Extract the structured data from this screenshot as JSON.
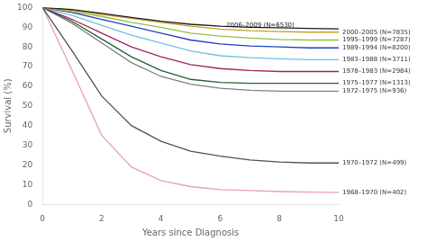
{
  "chart_data": {
    "type": "line",
    "xlabel": "Years since Diagnosis",
    "ylabel": "Survival (%)",
    "x": [
      0,
      1,
      2,
      3,
      4,
      5,
      6,
      7,
      8,
      9,
      10
    ],
    "xlim": [
      0,
      10
    ],
    "ylim": [
      0,
      100
    ],
    "xticks": [
      0,
      2,
      4,
      6,
      8,
      10
    ],
    "yticks": [
      0,
      10,
      20,
      30,
      40,
      50,
      60,
      70,
      80,
      90,
      100
    ],
    "grid": false,
    "series": [
      {
        "name": "2006–2009 (N=6530)",
        "color": "#1a1a1a",
        "values": [
          100,
          99,
          97,
          95,
          93,
          91.5,
          90.5,
          90.0,
          89.7,
          89.4,
          89.2
        ]
      },
      {
        "name": "2000–2005 (N=7835)",
        "color": "#c8a020",
        "values": [
          100,
          98.5,
          96.5,
          94.5,
          92.5,
          90.5,
          89.0,
          88.2,
          87.8,
          87.5,
          87.5
        ]
      },
      {
        "name": "1995–1999 (N=7287)",
        "color": "#90c040",
        "values": [
          100,
          98,
          95.5,
          92.5,
          90,
          87,
          85.5,
          84.5,
          83.8,
          83.5,
          83.5
        ]
      },
      {
        "name": "1989–1994 (N=8200)",
        "color": "#2040c0",
        "values": [
          100,
          97.5,
          94,
          90.5,
          87,
          83.5,
          81.5,
          80.5,
          80.0,
          79.5,
          79.5
        ]
      },
      {
        "name": "1983–1988 (N=3711)",
        "color": "#70c0e0",
        "values": [
          100,
          96,
          91,
          86,
          82,
          78,
          75.5,
          74.5,
          74.0,
          73.5,
          73.5
        ]
      },
      {
        "name": "1978–1983 (N=2984)",
        "color": "#a02060",
        "values": [
          100,
          94,
          87,
          80,
          75,
          71,
          69.0,
          68.0,
          67.5,
          67.5,
          67.5
        ]
      },
      {
        "name": "1975–1977 (N=1313)",
        "color": "#206030",
        "values": [
          100,
          93,
          84,
          75,
          68,
          63.5,
          62.0,
          61.5,
          61.5,
          61.5,
          61.5
        ]
      },
      {
        "name": "1972–1975 (N=936)",
        "color": "#808080",
        "values": [
          100,
          92,
          82,
          72,
          65,
          61,
          59.0,
          58.0,
          57.5,
          57.5,
          57.5
        ]
      },
      {
        "name": "1970–1972 (N=499)",
        "color": "#505050",
        "values": [
          100,
          78,
          55,
          40,
          32,
          27,
          24.5,
          22.5,
          21.5,
          21.0,
          21.0
        ]
      },
      {
        "name": "1968–1970 (N=402)",
        "color": "#e8a0b0",
        "values": [
          100,
          68,
          35,
          19,
          12,
          9,
          7.5,
          7.0,
          6.5,
          6.2,
          6.0
        ]
      }
    ],
    "annotations": [
      {
        "text": "2006–2009 (N=6530)",
        "x": 6.2,
        "y": 91,
        "color": "#1a1a1a"
      },
      {
        "text": "2000–2005 (N=7835)",
        "x": 10,
        "y": 87.5,
        "color": "#333333"
      },
      {
        "text": "1995–1999 (N=7287)",
        "x": 10,
        "y": 83.5,
        "color": "#333333"
      },
      {
        "text": "1989–1994 (N=8200)",
        "x": 10,
        "y": 79.5,
        "color": "#333333"
      },
      {
        "text": "1983–1988 (N=3711)",
        "x": 10,
        "y": 73.5,
        "color": "#333333"
      },
      {
        "text": "1978–1983 (N=2984)",
        "x": 10,
        "y": 67.5,
        "color": "#333333"
      },
      {
        "text": "1975–1977 (N=1313)",
        "x": 10,
        "y": 61.5,
        "color": "#333333"
      },
      {
        "text": "1972–1975 (N=936)",
        "x": 10,
        "y": 57.5,
        "color": "#333333"
      },
      {
        "text": "1970–1972 (N=499)",
        "x": 10,
        "y": 21.0,
        "color": "#333333"
      },
      {
        "text": "1968–1970 (N=402)",
        "x": 10,
        "y": 6.0,
        "color": "#333333"
      }
    ]
  }
}
